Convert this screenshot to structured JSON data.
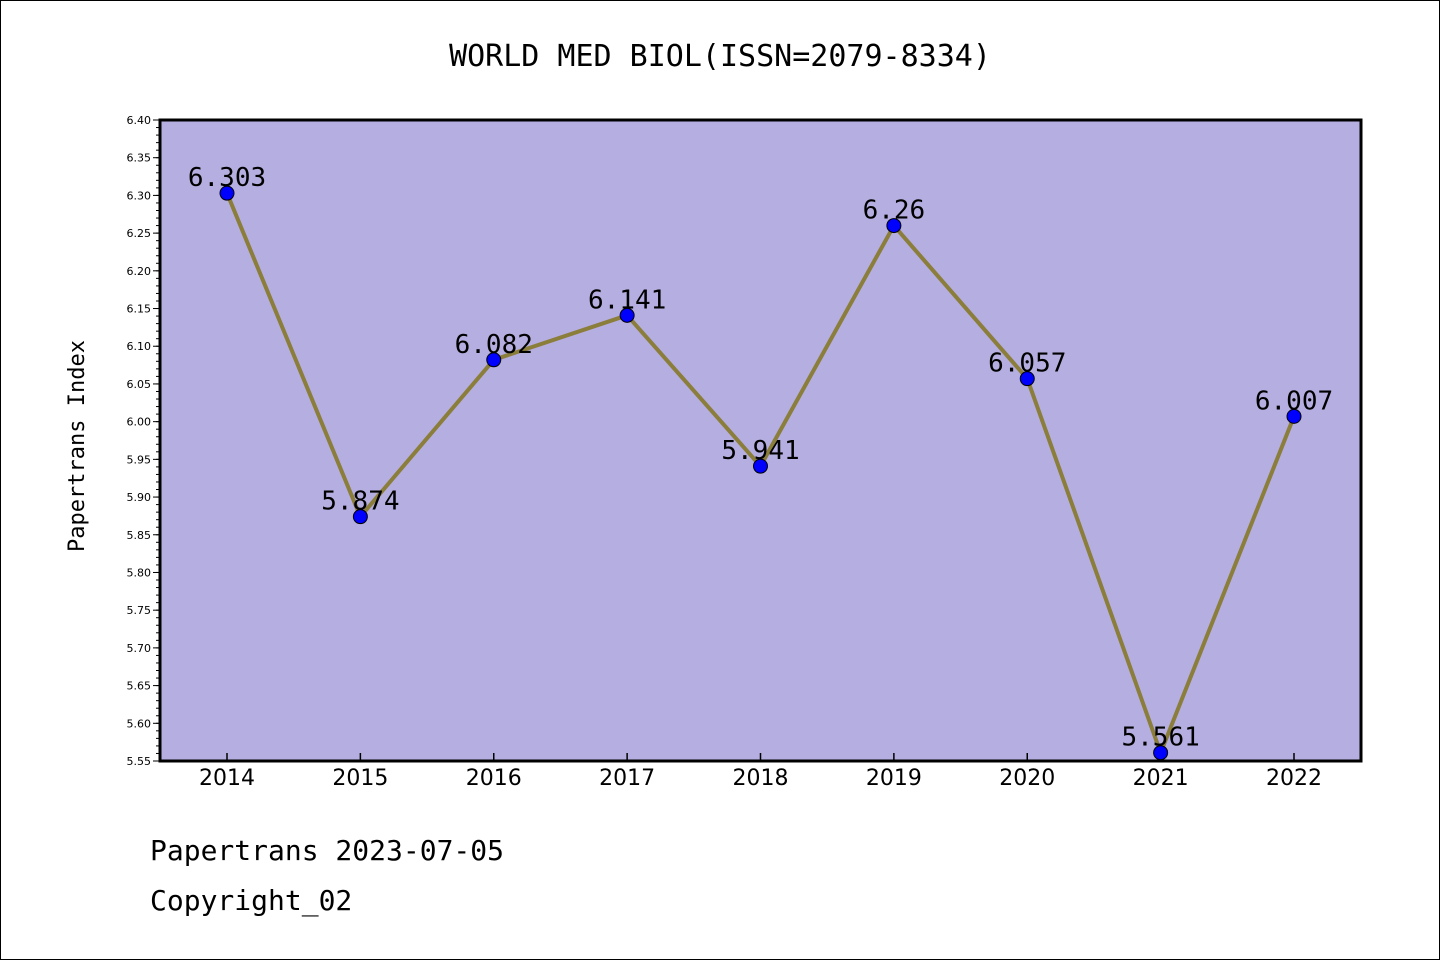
{
  "chart_data": {
    "type": "line",
    "title": "WORLD MED BIOL(ISSN=2079-8334)",
    "xlabel": "",
    "ylabel": "Papertrans Index",
    "categories": [
      "2014",
      "2015",
      "2016",
      "2017",
      "2018",
      "2019",
      "2020",
      "2021",
      "2022"
    ],
    "series": [
      {
        "values": [
          6.303,
          5.874,
          6.082,
          6.141,
          5.941,
          6.26,
          6.057,
          5.561,
          6.007
        ]
      }
    ],
    "data_labels": [
      "6.303",
      "5.874",
      "6.082",
      "6.141",
      "5.941",
      "6.26",
      "6.057",
      "5.561",
      "6.007"
    ],
    "ylim": [
      5.55,
      6.4
    ],
    "yticks": [
      "5.55",
      "5.60",
      "5.65",
      "5.70",
      "5.75",
      "5.80",
      "5.85",
      "5.90",
      "5.95",
      "6.00",
      "6.05",
      "6.10",
      "6.15",
      "6.20",
      "6.25",
      "6.30",
      "6.35",
      "6.40"
    ],
    "grid": false,
    "colors": {
      "plot_background": "#b5aee0",
      "line": "#8b7d3a",
      "marker": "#0000ff"
    }
  },
  "footer": {
    "line1": "Papertrans 2023-07-05",
    "line2": "Copyright_02"
  }
}
